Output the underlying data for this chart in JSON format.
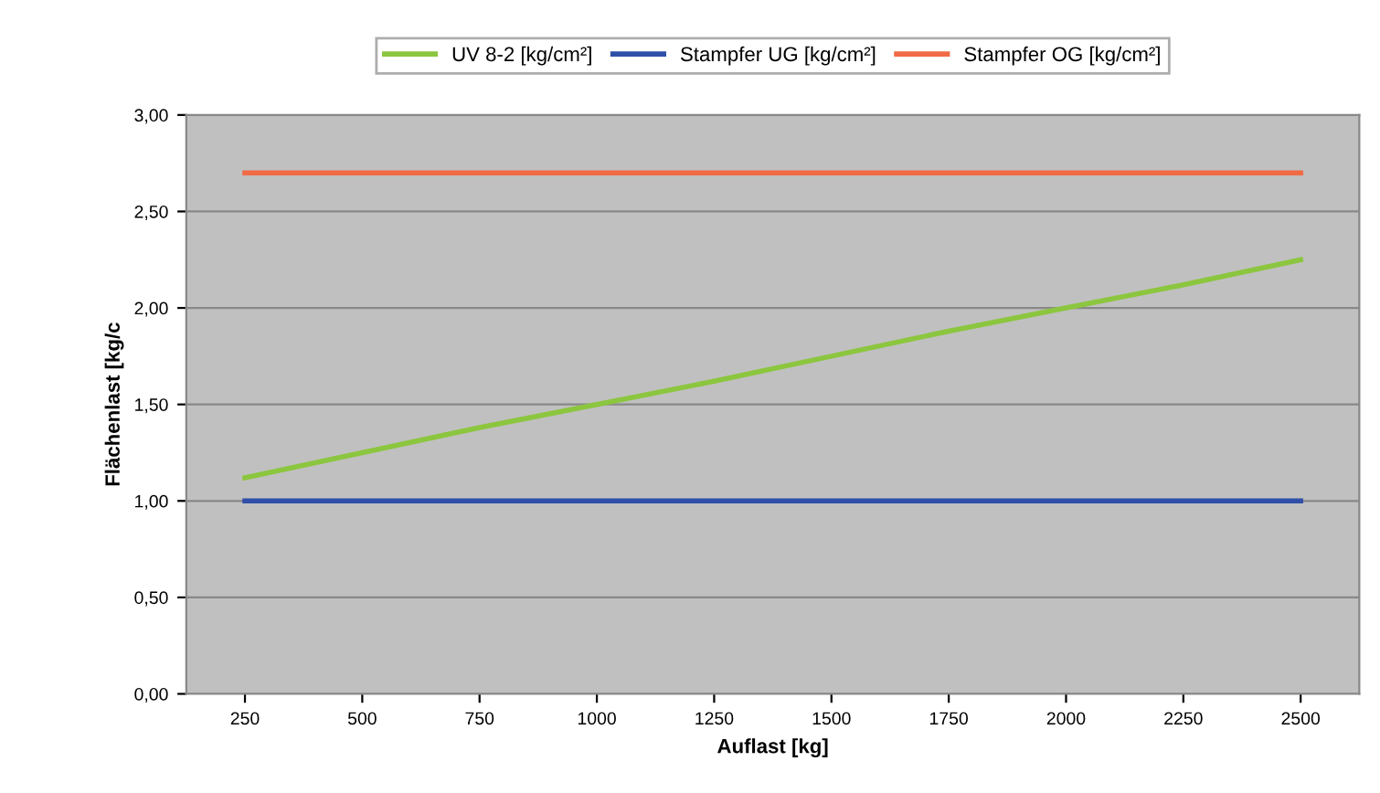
{
  "chart_data": {
    "type": "line",
    "xlabel": "Auflast [kg]",
    "ylabel": "Flächenlast [kg/c",
    "categories": [
      "250",
      "500",
      "750",
      "1000",
      "1250",
      "1500",
      "1750",
      "2000",
      "2250",
      "2500"
    ],
    "series": [
      {
        "name": "UV 8-2 [kg/cm²]",
        "color": "#8cc63f",
        "values": [
          1.12,
          1.25,
          1.38,
          1.5,
          1.62,
          1.75,
          1.88,
          2.0,
          2.12,
          2.25
        ]
      },
      {
        "name": "Stampfer UG [kg/cm²]",
        "color": "#2f4fa8",
        "values": [
          1.0,
          1.0,
          1.0,
          1.0,
          1.0,
          1.0,
          1.0,
          1.0,
          1.0,
          1.0
        ]
      },
      {
        "name": "Stampfer OG [kg/cm²]",
        "color": "#f06a45",
        "values": [
          2.7,
          2.7,
          2.7,
          2.7,
          2.7,
          2.7,
          2.7,
          2.7,
          2.7,
          2.7
        ]
      }
    ],
    "ylim": [
      0,
      3
    ],
    "yticks": [
      {
        "value": 0,
        "label": "0,00"
      },
      {
        "value": 0.5,
        "label": "0,50"
      },
      {
        "value": 1,
        "label": "1,00"
      },
      {
        "value": 1.5,
        "label": "1,50"
      },
      {
        "value": 2,
        "label": "2,00"
      },
      {
        "value": 2.5,
        "label": "2,50"
      },
      {
        "value": 3,
        "label": "3,00"
      }
    ],
    "grid": "y",
    "legend": "top",
    "marker": "none",
    "line_style": "solid"
  }
}
